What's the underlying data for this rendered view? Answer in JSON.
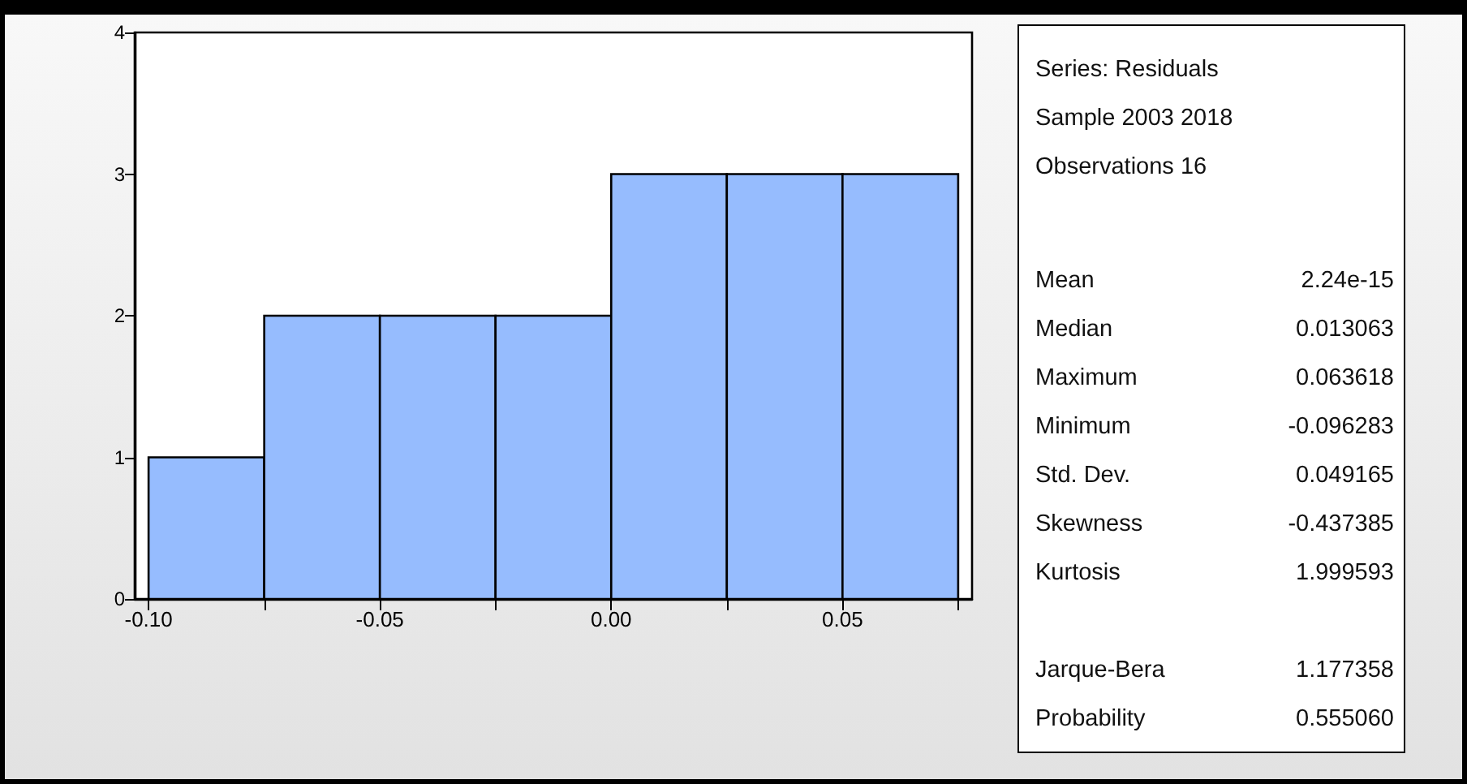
{
  "chart_data": [
    {
      "type": "histogram",
      "bins": [
        -0.1,
        -0.075,
        -0.05,
        -0.025,
        0,
        0.025,
        0.05,
        0.075
      ],
      "values": [
        1,
        2,
        2,
        2,
        3,
        3,
        3
      ],
      "color": "#96bcfe",
      "xlim": [
        -0.103,
        0.078
      ],
      "xticks": [
        {
          "value": -0.1,
          "label": "-0.10"
        },
        {
          "value": -0.075,
          "label": null
        },
        -0.05,
        {
          "value": -0.025,
          "label": null
        },
        {
          "value": 0,
          "label": "0.00"
        },
        {
          "value": 0.025,
          "label": null
        },
        0.05,
        {
          "value": 0.075,
          "label": null
        }
      ],
      "ylim": [
        0,
        4
      ],
      "yticks": [
        0,
        1,
        2,
        3,
        4
      ]
    },
    {
      "type": "other",
      "annotations": [
        "Series: Residuals",
        "Sample 2003 2018",
        "Observations 16"
      ],
      "categories": [
        "Mean",
        "Median",
        "Maximum",
        "Minimum",
        "Std. Dev.",
        "Skewness",
        "Kurtosis",
        null,
        "Jarque-Bera",
        "Probability"
      ],
      "value_labels": [
        "2.24e-15",
        "0.013063",
        "0.063618",
        "-0.096283",
        "0.049165",
        "-0.437385",
        "1.999593",
        null,
        "1.177358",
        "0.555060"
      ]
    }
  ]
}
